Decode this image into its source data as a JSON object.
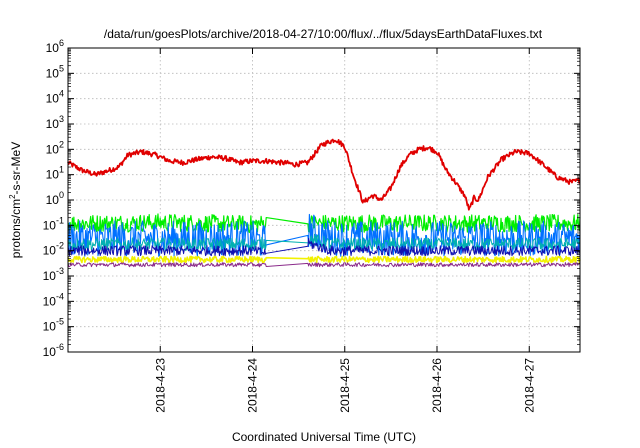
{
  "chart_data": {
    "type": "line",
    "title": "/data/run/goesPlots/archive/2018-04-27/10:00/flux/../flux/5daysEarthDataFluxes.txt",
    "xlabel": "Coordinated Universal Time (UTC)",
    "ylabel": {
      "pre": "protons/cm",
      "sup": "2",
      "post": "-s-sr-MeV"
    },
    "scale_y": "log",
    "grid": true,
    "legend": "none",
    "x_start": "2018-04-22",
    "xlim": [
      0.0,
      5.55
    ],
    "x_ticks": [
      {
        "x": 1.0,
        "label": "2018-4-23"
      },
      {
        "x": 2.0,
        "label": "2018-4-24"
      },
      {
        "x": 3.0,
        "label": "2018-4-25"
      },
      {
        "x": 4.0,
        "label": "2018-4-26"
      },
      {
        "x": 5.0,
        "label": "2018-4-27"
      }
    ],
    "ylim_exp": [
      -6,
      6
    ],
    "y_ticks": [
      {
        "base": "10",
        "exp": "-6"
      },
      {
        "base": "10",
        "exp": "-5"
      },
      {
        "base": "10",
        "exp": "-4"
      },
      {
        "base": "10",
        "exp": "-3"
      },
      {
        "base": "10",
        "exp": "-2"
      },
      {
        "base": "10",
        "exp": "-1"
      },
      {
        "base": "10",
        "exp": "0"
      },
      {
        "base": "10",
        "exp": "1"
      },
      {
        "base": "10",
        "exp": "2"
      },
      {
        "base": "10",
        "exp": "3"
      },
      {
        "base": "10",
        "exp": "4"
      },
      {
        "base": "10",
        "exp": "5"
      },
      {
        "base": "10",
        "exp": "6"
      }
    ],
    "series": [
      {
        "color": "#e00000",
        "width": 1.8,
        "noise": 0.1,
        "x": [
          0.0,
          0.15,
          0.3,
          0.45,
          0.55,
          0.65,
          0.8,
          0.95,
          1.1,
          1.25,
          1.4,
          1.55,
          1.7,
          1.85,
          2.0,
          2.15,
          2.3,
          2.4,
          2.45,
          2.6,
          2.75,
          2.9,
          3.0,
          3.1,
          3.2,
          3.3,
          3.4,
          3.5,
          3.6,
          3.7,
          3.8,
          3.9,
          4.0,
          4.1,
          4.2,
          4.3,
          4.35,
          4.4,
          4.45,
          4.55,
          4.7,
          4.85,
          5.0,
          5.15,
          5.3,
          5.45,
          5.55
        ],
        "y": [
          30,
          15,
          10,
          15,
          20,
          60,
          80,
          60,
          35,
          30,
          40,
          50,
          45,
          30,
          35,
          35,
          30,
          28,
          25,
          30,
          150,
          250,
          130,
          8,
          0.8,
          1.5,
          1.0,
          3,
          20,
          60,
          100,
          120,
          80,
          15,
          5,
          1.5,
          0.4,
          1.2,
          1.0,
          8,
          40,
          80,
          70,
          25,
          8,
          5,
          6
        ],
        "gaps": []
      },
      {
        "color": "#00ee00",
        "width": 1.2,
        "noise": 0.35,
        "x": [
          0.0,
          0.5,
          1.0,
          1.5,
          2.0,
          2.15,
          2.6,
          2.85,
          3.0,
          3.5,
          4.0,
          4.5,
          5.0,
          5.55
        ],
        "y": [
          0.12,
          0.12,
          0.13,
          0.12,
          0.11,
          0.12,
          0.12,
          0.12,
          0.12,
          0.12,
          0.12,
          0.12,
          0.12,
          0.12
        ],
        "gaps": [
          [
            2.15,
            2.6
          ]
        ]
      },
      {
        "color": "#0070ff",
        "width": 1.1,
        "noise": 0.7,
        "x": [
          0.0,
          0.5,
          1.0,
          1.5,
          2.0,
          2.15,
          2.6,
          2.85,
          3.0,
          3.5,
          4.0,
          4.5,
          5.0,
          5.55
        ],
        "y": [
          0.03,
          0.03,
          0.03,
          0.03,
          0.03,
          0.02,
          0.07,
          0.03,
          0.03,
          0.03,
          0.03,
          0.03,
          0.03,
          0.03
        ],
        "gaps": [
          [
            2.15,
            2.6
          ]
        ]
      },
      {
        "color": "#00b0b0",
        "width": 1.0,
        "noise": 0.25,
        "x": [
          0.0,
          1.0,
          2.0,
          2.15,
          2.6,
          2.85,
          3.0,
          4.0,
          5.0,
          5.55
        ],
        "y": [
          0.018,
          0.018,
          0.018,
          0.02,
          0.03,
          0.018,
          0.018,
          0.018,
          0.018,
          0.018
        ],
        "gaps": [
          [
            2.15,
            2.6
          ]
        ]
      },
      {
        "color": "#1010b0",
        "width": 1.0,
        "noise": 0.2,
        "x": [
          0.0,
          1.0,
          2.0,
          2.15,
          2.6,
          2.85,
          3.0,
          4.0,
          5.0,
          5.55
        ],
        "y": [
          0.01,
          0.01,
          0.01,
          0.008,
          0.02,
          0.01,
          0.01,
          0.01,
          0.01,
          0.01
        ],
        "gaps": [
          [
            2.15,
            2.6
          ]
        ]
      },
      {
        "color": "#f2f200",
        "width": 1.6,
        "noise": 0.12,
        "x": [
          0.0,
          1.0,
          2.0,
          2.15,
          2.6,
          3.0,
          4.0,
          5.0,
          5.55
        ],
        "y": [
          0.0045,
          0.0045,
          0.0045,
          0.0045,
          0.0045,
          0.0045,
          0.0045,
          0.0045,
          0.0045
        ],
        "gaps": [
          [
            2.15,
            2.6
          ]
        ]
      },
      {
        "color": "#8b2c8b",
        "width": 1.0,
        "noise": 0.08,
        "x": [
          0.0,
          1.0,
          2.0,
          2.15,
          2.6,
          3.0,
          4.0,
          5.0,
          5.55
        ],
        "y": [
          0.0028,
          0.0028,
          0.0028,
          0.0027,
          0.0028,
          0.0028,
          0.0028,
          0.0028,
          0.0028
        ],
        "gaps": [
          [
            2.15,
            2.6
          ]
        ]
      }
    ]
  }
}
